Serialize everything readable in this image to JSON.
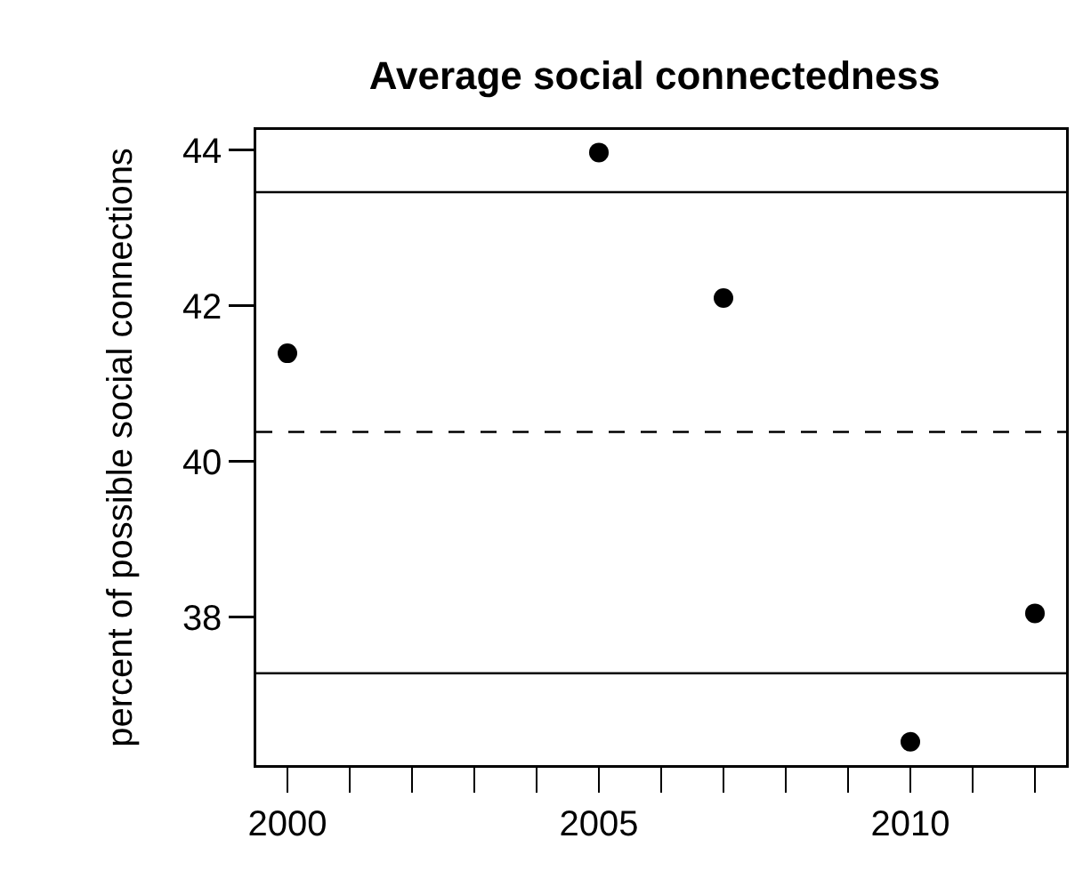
{
  "chart_data": {
    "type": "scatter",
    "title": "Average social connectedness",
    "ylabel": "percent of possible social connections",
    "x": [
      2000,
      2005,
      2007,
      2010,
      2012
    ],
    "values": [
      41.39,
      43.97,
      42.1,
      36.4,
      38.05
    ],
    "color": "#000000",
    "marker": "circle",
    "xlim": [
      1999.5,
      2012.5
    ],
    "xticks": [
      2000,
      {
        "value": 2001,
        "label": null
      },
      {
        "value": 2002,
        "label": null
      },
      {
        "value": 2003,
        "label": null
      },
      {
        "value": 2004,
        "label": null
      },
      2005,
      {
        "value": 2006,
        "label": null
      },
      {
        "value": 2007,
        "label": null
      },
      {
        "value": 2008,
        "label": null
      },
      {
        "value": 2009,
        "label": null
      },
      2010,
      {
        "value": 2011,
        "label": null
      },
      {
        "value": 2012,
        "label": null
      }
    ],
    "ylim": [
      36.1,
      44.26
    ],
    "yticks": [
      38,
      40,
      42,
      44
    ],
    "ref_lines": [
      {
        "axis": "y",
        "value": 43.46,
        "color": "#000000",
        "line_style": "solid"
      },
      {
        "axis": "y",
        "value": 40.38,
        "color": "#000000",
        "line_style": "dashed"
      },
      {
        "axis": "y",
        "value": 37.28,
        "color": "#000000",
        "line_style": "solid"
      }
    ]
  }
}
